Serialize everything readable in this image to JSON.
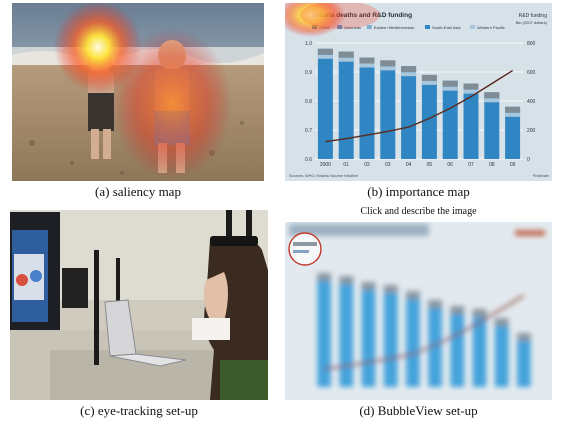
{
  "captions": {
    "a": "(a) saliency map",
    "b": "(b) importance map",
    "c": "(c) eye-tracking set-up",
    "d": "(d) BubbleView set-up"
  },
  "bubbleview_prompt": "Click and describe the image",
  "chart_b": {
    "title": "Malaria deaths and R&D funding",
    "legend": [
      "Africa",
      "Americas",
      "Eastern Mediterranean",
      "South-East Asia",
      "Western Pacific"
    ],
    "right_axis_title": "R&D funding",
    "right_axis_unit": "$m (2007 dollars)",
    "source": "Sources: WHO; Malaria Vaccine Initiative",
    "note": "*Estimate",
    "colors": {
      "bar_light": "#a9c7dc",
      "bar_dark": "#2f86c2",
      "bar_grey": "#7f8c96",
      "line": "#5a2a1e",
      "bg": "#d6e1e8"
    }
  },
  "chart_data": {
    "type": "bar",
    "categories": [
      "2000",
      "01",
      "02",
      "03",
      "04",
      "05",
      "06",
      "07",
      "08",
      "09"
    ],
    "series": [
      {
        "name": "Malaria deaths",
        "values": [
          0.98,
          0.97,
          0.95,
          0.94,
          0.92,
          0.89,
          0.87,
          0.86,
          0.83,
          0.78
        ]
      },
      {
        "name": "R&D funding",
        "values": [
          120,
          140,
          165,
          190,
          220,
          280,
          350,
          430,
          520,
          610
        ]
      }
    ],
    "y_ticks_left": [
      "1.0",
      "0.9",
      "0.8",
      "0.7",
      "0.6"
    ],
    "y_ticks_right": [
      "800",
      "600",
      "400",
      "200",
      "0"
    ],
    "ylim": [
      0.6,
      1.0
    ],
    "ylim_right": [
      0,
      800
    ]
  }
}
